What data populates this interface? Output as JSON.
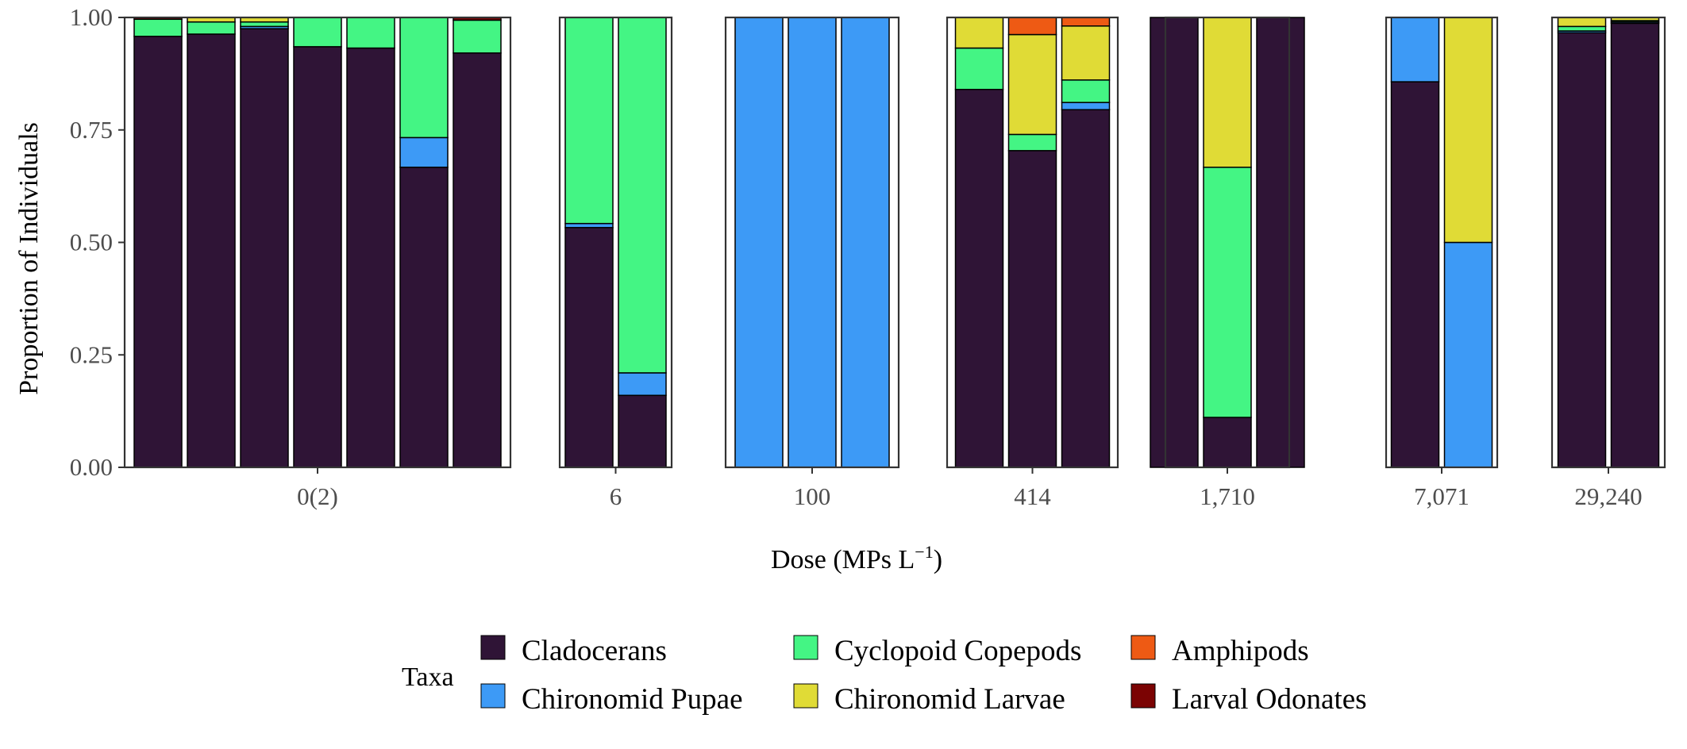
{
  "chart_data": {
    "type": "bar",
    "stacked": true,
    "faceted": true,
    "xlabel": "Dose (MPs L",
    "xlabel_superscript": "−1",
    "xlabel_close": ")",
    "ylabel": "Proportion of Individuals",
    "ylim": [
      0,
      1
    ],
    "y_ticks": [
      "0.00",
      "0.25",
      "0.50",
      "0.75",
      "1.00"
    ],
    "legend": {
      "title": "Taxa",
      "placement": "bottom"
    },
    "taxa": [
      {
        "name": "Cladocerans",
        "color": "#2f1436"
      },
      {
        "name": "Chironomid Pupae",
        "color": "#3d9af6"
      },
      {
        "name": "Cyclopoid Copepods",
        "color": "#44f584"
      },
      {
        "name": "Chironomid Larvae",
        "color": "#e0db36"
      },
      {
        "name": "Amphipods",
        "color": "#ee5a14"
      },
      {
        "name": "Larval Odonates",
        "color": "#7b0303"
      }
    ],
    "panels": [
      {
        "dose": "0(2)",
        "bars": [
          {
            "Cladocerans": 0.958,
            "Chironomid Pupae": 0.0,
            "Cyclopoid Copepods": 0.038,
            "Chironomid Larvae": 0.0,
            "Amphipods": 0.0,
            "Larval Odonates": 0.004
          },
          {
            "Cladocerans": 0.963,
            "Chironomid Pupae": 0.0,
            "Cyclopoid Copepods": 0.027,
            "Chironomid Larvae": 0.01,
            "Amphipods": 0.0,
            "Larval Odonates": 0.0
          },
          {
            "Cladocerans": 0.975,
            "Chironomid Pupae": 0.005,
            "Cyclopoid Copepods": 0.01,
            "Chironomid Larvae": 0.01,
            "Amphipods": 0.0,
            "Larval Odonates": 0.0
          },
          {
            "Cladocerans": 0.935,
            "Chironomid Pupae": 0.0,
            "Cyclopoid Copepods": 0.065,
            "Chironomid Larvae": 0.0,
            "Amphipods": 0.0,
            "Larval Odonates": 0.0
          },
          {
            "Cladocerans": 0.932,
            "Chironomid Pupae": 0.0,
            "Cyclopoid Copepods": 0.068,
            "Chironomid Larvae": 0.0,
            "Amphipods": 0.0,
            "Larval Odonates": 0.0
          },
          {
            "Cladocerans": 0.667,
            "Chironomid Pupae": 0.066,
            "Cyclopoid Copepods": 0.267,
            "Chironomid Larvae": 0.0,
            "Amphipods": 0.0,
            "Larval Odonates": 0.0
          },
          {
            "Cladocerans": 0.921,
            "Chironomid Pupae": 0.0,
            "Cyclopoid Copepods": 0.073,
            "Chironomid Larvae": 0.0,
            "Amphipods": 0.0,
            "Larval Odonates": 0.006
          }
        ]
      },
      {
        "dose": "6",
        "bars": [
          {
            "Cladocerans": 0.533,
            "Chironomid Pupae": 0.009,
            "Cyclopoid Copepods": 0.458,
            "Chironomid Larvae": 0.0,
            "Amphipods": 0.0,
            "Larval Odonates": 0.0
          },
          {
            "Cladocerans": 0.16,
            "Chironomid Pupae": 0.05,
            "Cyclopoid Copepods": 0.79,
            "Chironomid Larvae": 0.0,
            "Amphipods": 0.0,
            "Larval Odonates": 0.0
          }
        ]
      },
      {
        "dose": "100",
        "bars": [
          {
            "Cladocerans": 0.0,
            "Chironomid Pupae": 1.0,
            "Cyclopoid Copepods": 0.0,
            "Chironomid Larvae": 0.0,
            "Amphipods": 0.0,
            "Larval Odonates": 0.0
          },
          {
            "Cladocerans": 0.0,
            "Chironomid Pupae": 1.0,
            "Cyclopoid Copepods": 0.0,
            "Chironomid Larvae": 0.0,
            "Amphipods": 0.0,
            "Larval Odonates": 0.0
          },
          {
            "Cladocerans": 0.0,
            "Chironomid Pupae": 1.0,
            "Cyclopoid Copepods": 0.0,
            "Chironomid Larvae": 0.0,
            "Amphipods": 0.0,
            "Larval Odonates": 0.0
          }
        ]
      },
      {
        "dose": "414",
        "bars": [
          {
            "Cladocerans": 0.84,
            "Chironomid Pupae": 0.0,
            "Cyclopoid Copepods": 0.092,
            "Chironomid Larvae": 0.068,
            "Amphipods": 0.0,
            "Larval Odonates": 0.0
          },
          {
            "Cladocerans": 0.704,
            "Chironomid Pupae": 0.0,
            "Cyclopoid Copepods": 0.036,
            "Chironomid Larvae": 0.222,
            "Amphipods": 0.038,
            "Larval Odonates": 0.0
          },
          {
            "Cladocerans": 0.795,
            "Chironomid Pupae": 0.016,
            "Cyclopoid Copepods": 0.05,
            "Chironomid Larvae": 0.12,
            "Amphipods": 0.019,
            "Larval Odonates": 0.0
          }
        ]
      },
      {
        "dose": "1,710",
        "bars": [
          {
            "Cladocerans": 1.0,
            "Chironomid Pupae": 0.0,
            "Cyclopoid Copepods": 0.0,
            "Chironomid Larvae": 0.0,
            "Amphipods": 0.0,
            "Larval Odonates": 0.0
          },
          {
            "Cladocerans": 0.111,
            "Chironomid Pupae": 0.0,
            "Cyclopoid Copepods": 0.556,
            "Chironomid Larvae": 0.333,
            "Amphipods": 0.0,
            "Larval Odonates": 0.0
          },
          {
            "Cladocerans": 1.0,
            "Chironomid Pupae": 0.0,
            "Cyclopoid Copepods": 0.0,
            "Chironomid Larvae": 0.0,
            "Amphipods": 0.0,
            "Larval Odonates": 0.0
          }
        ]
      },
      {
        "dose": "7,071",
        "bars": [
          {
            "Cladocerans": 0.857,
            "Chironomid Pupae": 0.143,
            "Cyclopoid Copepods": 0.0,
            "Chironomid Larvae": 0.0,
            "Amphipods": 0.0,
            "Larval Odonates": 0.0
          },
          {
            "Cladocerans": 0.0,
            "Chironomid Pupae": 0.5,
            "Cyclopoid Copepods": 0.0,
            "Chironomid Larvae": 0.5,
            "Amphipods": 0.0,
            "Larval Odonates": 0.0
          }
        ]
      },
      {
        "dose": "29,240",
        "bars": [
          {
            "Cladocerans": 0.966,
            "Chironomid Pupae": 0.004,
            "Cyclopoid Copepods": 0.01,
            "Chironomid Larvae": 0.02,
            "Amphipods": 0.0,
            "Larval Odonates": 0.0
          },
          {
            "Cladocerans": 0.987,
            "Chironomid Pupae": 0.003,
            "Cyclopoid Copepods": 0.003,
            "Chironomid Larvae": 0.007,
            "Amphipods": 0.0,
            "Larval Odonates": 0.0
          }
        ]
      }
    ]
  }
}
